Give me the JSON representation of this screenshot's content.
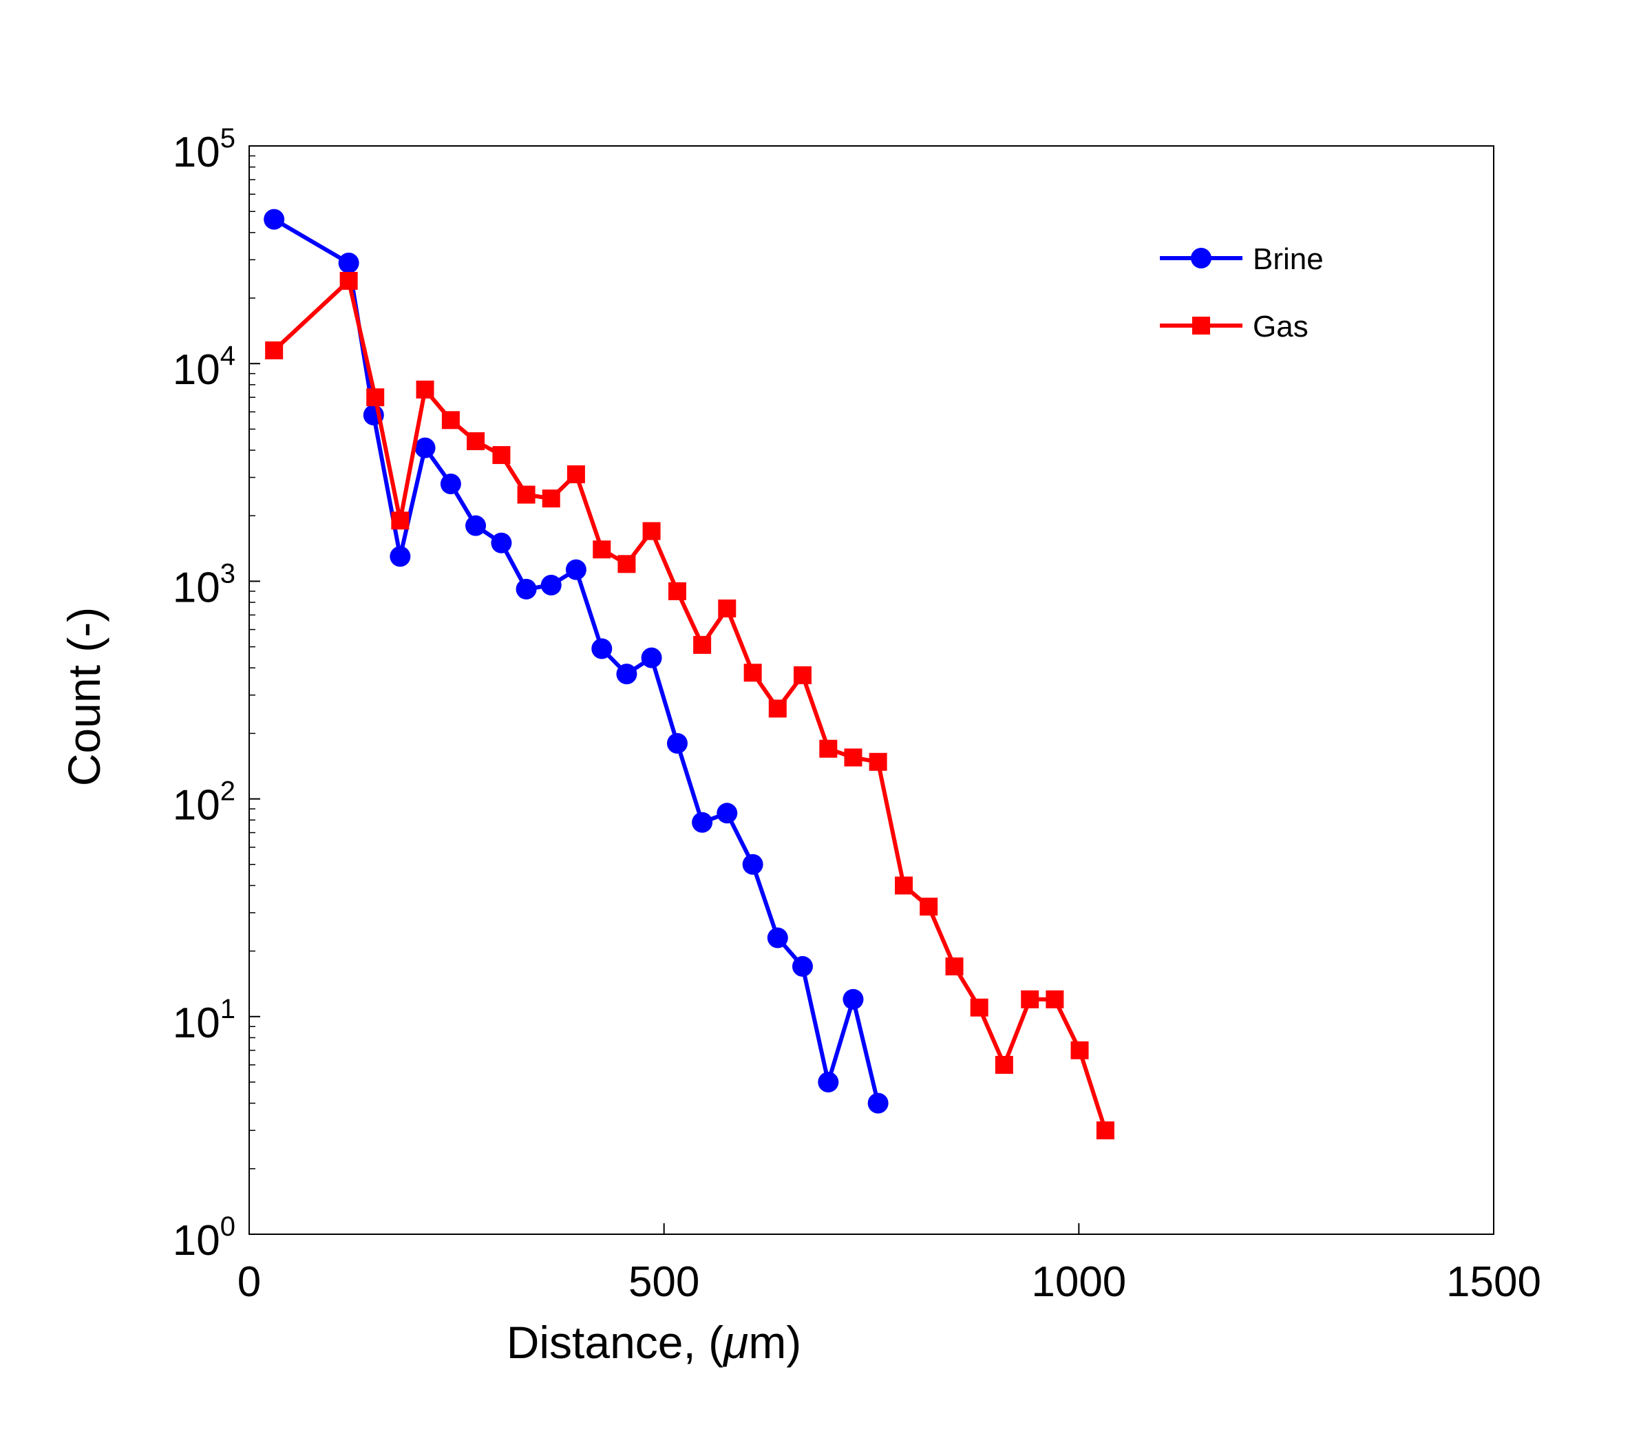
{
  "chart_data": {
    "type": "line",
    "title": "",
    "xlabel_main": "Distance, (",
    "xlabel_mu": "μ",
    "xlabel_end": "m)",
    "ylabel": "Count (-)",
    "xlim": [
      0,
      1500
    ],
    "ylim": [
      1,
      100000
    ],
    "yscale": "log",
    "grid": false,
    "legend_position": "top-right",
    "x_ticks": [
      0,
      500,
      1000,
      1500
    ],
    "x_tick_labels": [
      "0",
      "500",
      "1000",
      "1500"
    ],
    "y_ticks": [
      1,
      10,
      100,
      1000,
      10000,
      100000
    ],
    "y_tick_base": "10",
    "y_tick_exponents": [
      "0",
      "1",
      "2",
      "3",
      "4",
      "5"
    ],
    "series": [
      {
        "name": "Brine",
        "color": "#0000ff",
        "marker": "circle",
        "x": [
          30,
          120,
          150,
          182,
          212,
          243,
          273,
          304,
          334,
          364,
          394,
          425,
          455,
          485,
          516,
          546,
          576,
          607,
          637,
          667,
          698,
          728,
          758
        ],
        "y": [
          46000,
          29000,
          5800,
          1300,
          4100,
          2800,
          1800,
          1500,
          920,
          960,
          1130,
          490,
          375,
          445,
          180,
          78,
          86,
          50,
          23,
          17,
          5,
          12,
          4
        ]
      },
      {
        "name": "Gas",
        "color": "#ff0000",
        "marker": "square",
        "x": [
          30,
          120,
          152,
          182,
          212,
          243,
          273,
          304,
          334,
          364,
          394,
          425,
          455,
          485,
          516,
          546,
          576,
          607,
          637,
          667,
          698,
          728,
          758,
          789,
          819,
          850,
          880,
          910,
          941,
          971,
          1001,
          1032
        ],
        "y": [
          11500,
          24000,
          7000,
          1900,
          7600,
          5500,
          4400,
          3800,
          2500,
          2400,
          3100,
          1400,
          1200,
          1700,
          900,
          510,
          750,
          380,
          260,
          370,
          170,
          155,
          148,
          40,
          32,
          17,
          11,
          6,
          12,
          12,
          7,
          3
        ]
      }
    ]
  }
}
